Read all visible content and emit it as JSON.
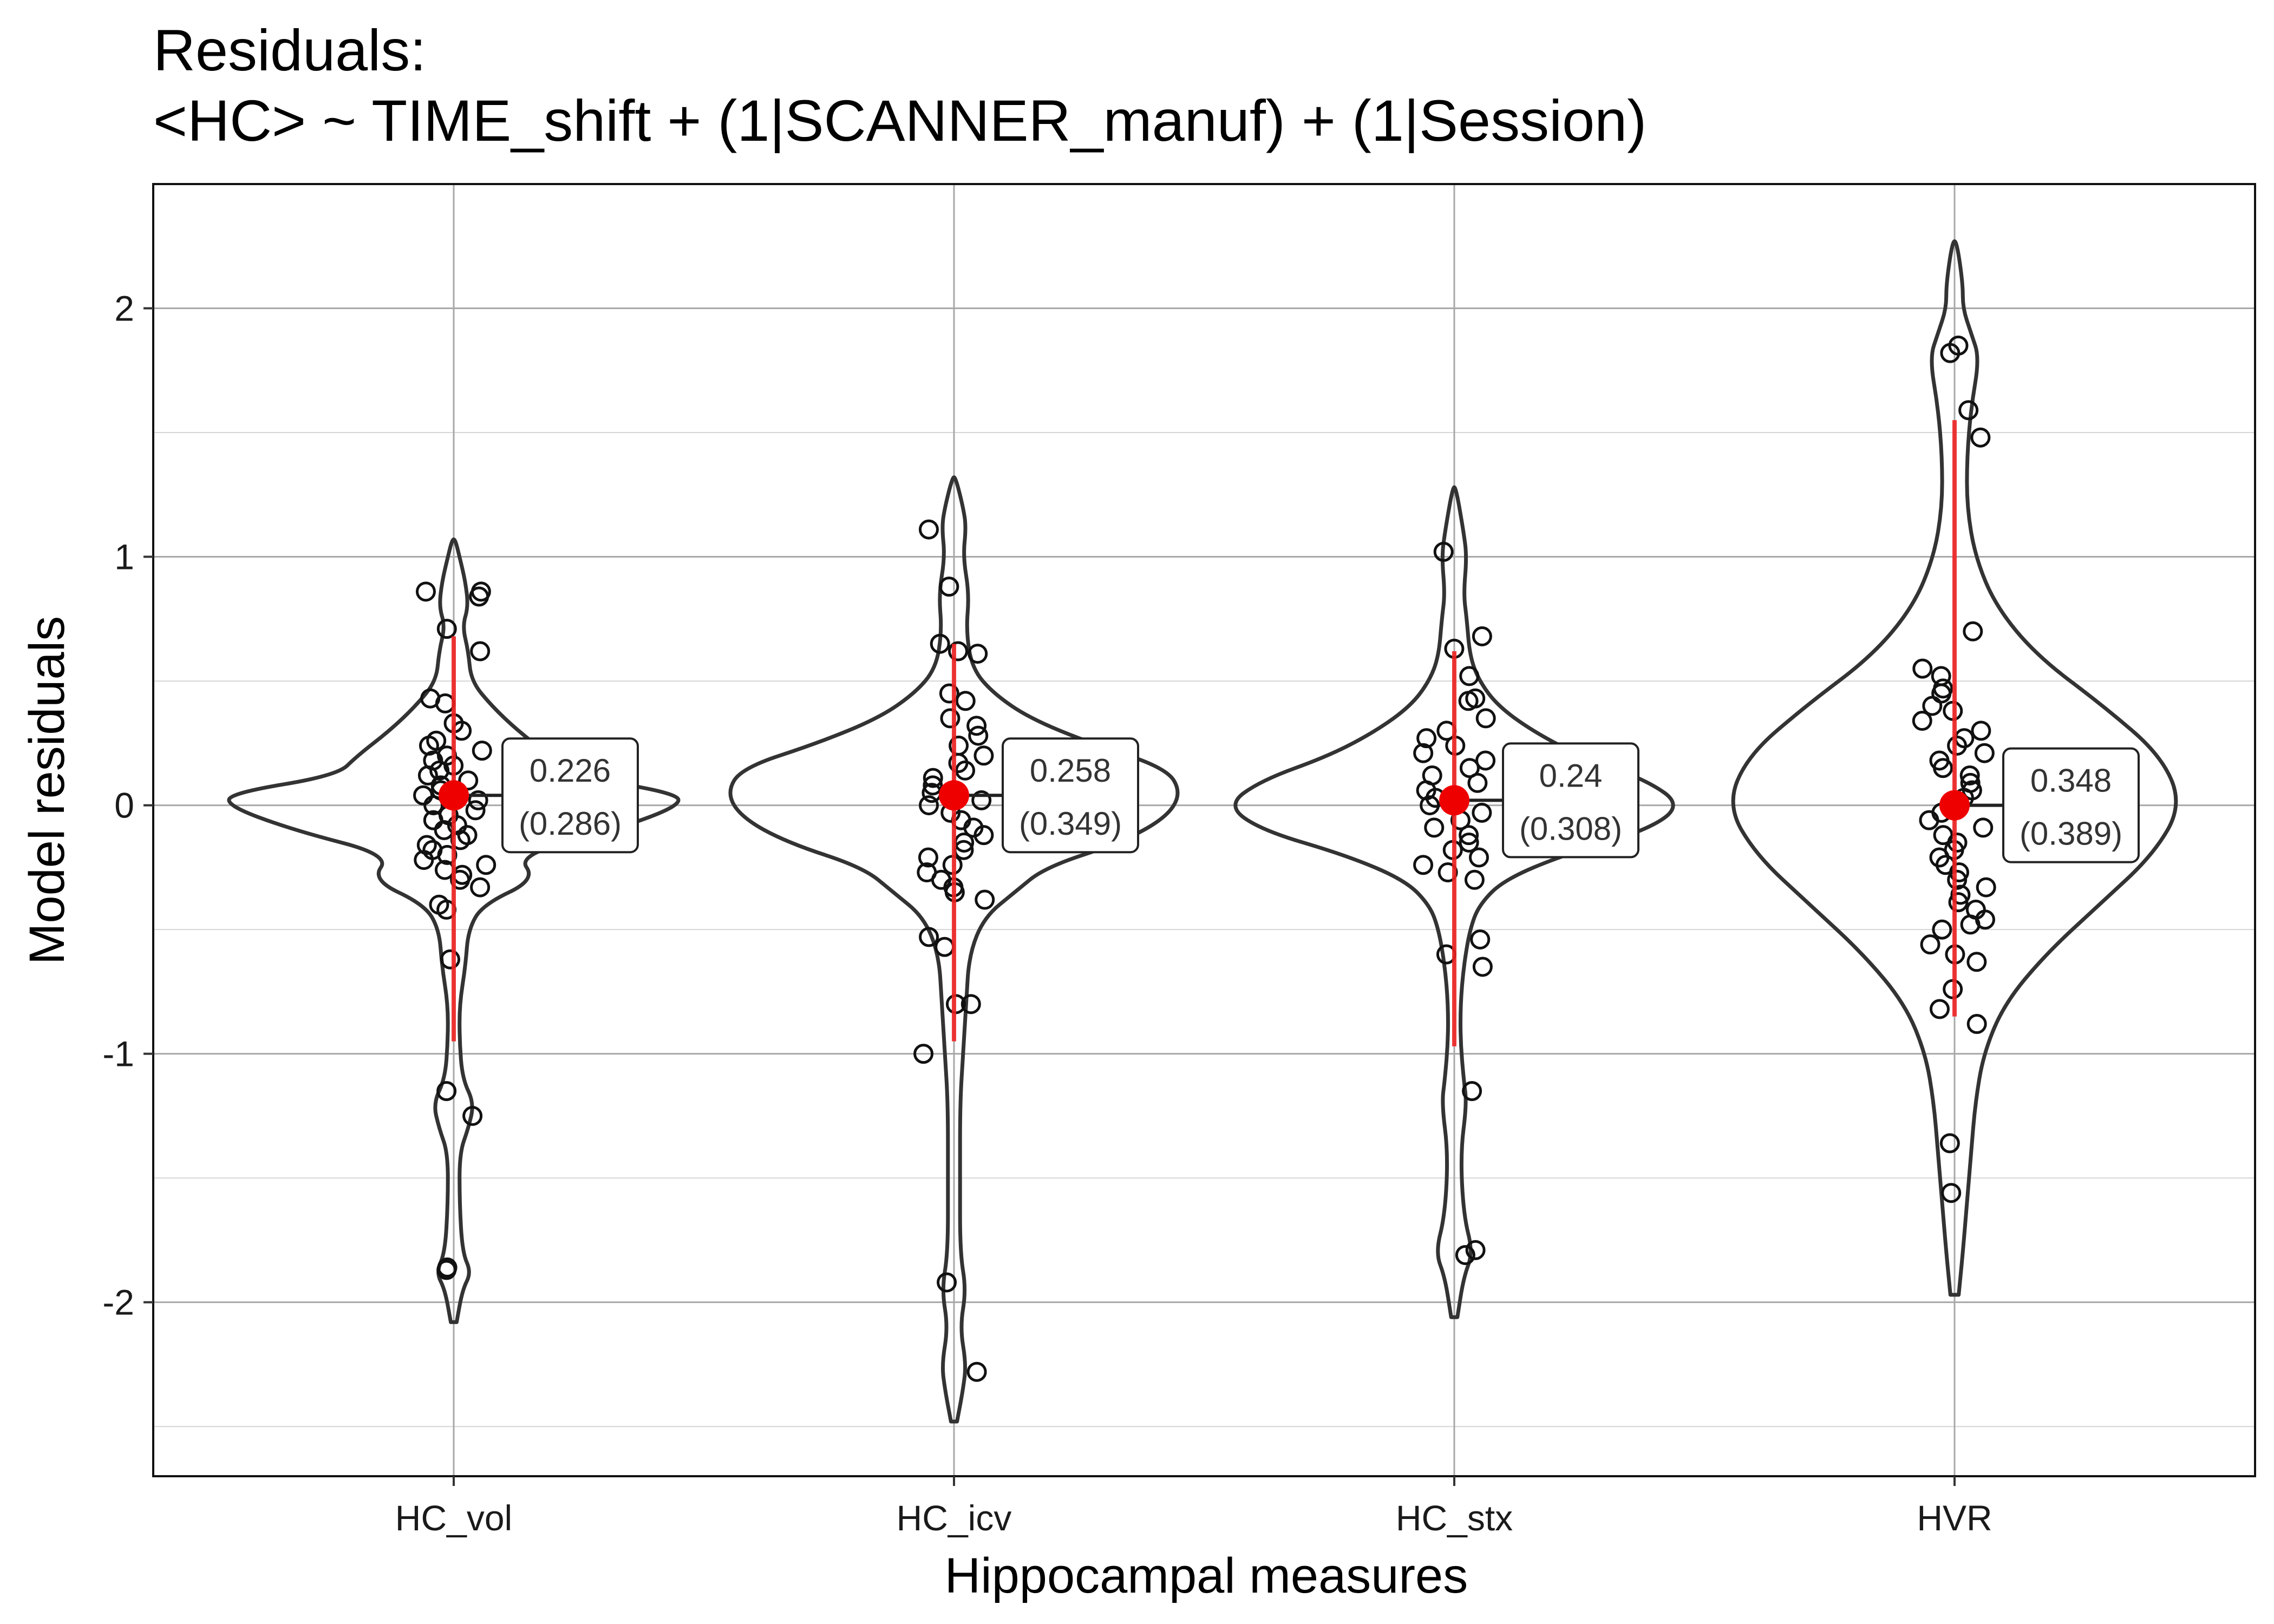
{
  "chart_data": {
    "type": "violin",
    "title": "Residuals:",
    "subtitle": "<HC> ~ TIME_shift + (1|SCANNER_manuf) + (1|Session)",
    "xlabel": "Hippocampal measures",
    "ylabel": "Model residuals",
    "ylim": [
      -2.7,
      2.5
    ],
    "yticks": [
      -2,
      -1,
      0,
      1,
      2
    ],
    "ytick_labels": [
      "-2",
      "-1",
      "0",
      "1",
      "2"
    ],
    "grid": true,
    "categories": [
      "HC_vol",
      "HC_icv",
      "HC_stx",
      "HVR"
    ],
    "groups": [
      {
        "name": "HC_vol",
        "mean": 0.04,
        "interval": [
          -0.95,
          0.68
        ],
        "label_sd": "0.226",
        "label_paren": "(0.286)",
        "y_range": [
          -2.08,
          1.07
        ],
        "density": [
          [
            -2.08,
            0.01
          ],
          [
            -1.95,
            0.03
          ],
          [
            -1.88,
            0.06
          ],
          [
            -1.8,
            0.03
          ],
          [
            -1.6,
            0.02
          ],
          [
            -1.4,
            0.02
          ],
          [
            -1.3,
            0.05
          ],
          [
            -1.2,
            0.07
          ],
          [
            -1.1,
            0.03
          ],
          [
            -0.95,
            0.02
          ],
          [
            -0.8,
            0.02
          ],
          [
            -0.65,
            0.04
          ],
          [
            -0.5,
            0.05
          ],
          [
            -0.4,
            0.1
          ],
          [
            -0.3,
            0.28
          ],
          [
            -0.2,
            0.22
          ],
          [
            -0.1,
            0.55
          ],
          [
            0.0,
            0.78
          ],
          [
            0.05,
            0.76
          ],
          [
            0.12,
            0.4
          ],
          [
            0.2,
            0.33
          ],
          [
            0.3,
            0.22
          ],
          [
            0.4,
            0.13
          ],
          [
            0.5,
            0.06
          ],
          [
            0.62,
            0.05
          ],
          [
            0.72,
            0.03
          ],
          [
            0.8,
            0.05
          ],
          [
            0.9,
            0.04
          ],
          [
            1.0,
            0.02
          ],
          [
            1.07,
            0.005
          ]
        ],
        "points": [
          0.84,
          0.86,
          0.86,
          0.71,
          0.62,
          0.43,
          0.41,
          0.33,
          0.3,
          0.26,
          0.24,
          0.22,
          0.2,
          0.18,
          0.16,
          0.14,
          0.12,
          0.1,
          0.08,
          0.06,
          0.04,
          0.02,
          0.0,
          -0.02,
          -0.04,
          -0.06,
          -0.08,
          -0.1,
          -0.12,
          -0.14,
          -0.16,
          -0.18,
          -0.2,
          -0.22,
          -0.24,
          -0.26,
          -0.28,
          -0.3,
          -0.33,
          -0.4,
          -0.42,
          -0.62,
          -1.15,
          -1.25,
          -1.86,
          -1.87
        ]
      },
      {
        "name": "HC_icv",
        "mean": 0.04,
        "interval": [
          -0.95,
          0.65
        ],
        "label_sd": "0.258",
        "label_paren": "(0.349)",
        "y_range": [
          -2.48,
          1.32
        ],
        "density": [
          [
            -2.48,
            0.01
          ],
          [
            -2.35,
            0.03
          ],
          [
            -2.25,
            0.04
          ],
          [
            -2.1,
            0.02
          ],
          [
            -1.95,
            0.04
          ],
          [
            -1.8,
            0.02
          ],
          [
            -1.5,
            0.02
          ],
          [
            -1.2,
            0.02
          ],
          [
            -1.0,
            0.03
          ],
          [
            -0.8,
            0.04
          ],
          [
            -0.6,
            0.05
          ],
          [
            -0.45,
            0.1
          ],
          [
            -0.35,
            0.2
          ],
          [
            -0.25,
            0.3
          ],
          [
            -0.15,
            0.55
          ],
          [
            -0.05,
            0.7
          ],
          [
            0.05,
            0.75
          ],
          [
            0.15,
            0.7
          ],
          [
            0.25,
            0.45
          ],
          [
            0.35,
            0.25
          ],
          [
            0.45,
            0.13
          ],
          [
            0.55,
            0.06
          ],
          [
            0.7,
            0.04
          ],
          [
            0.85,
            0.05
          ],
          [
            1.0,
            0.03
          ],
          [
            1.12,
            0.04
          ],
          [
            1.2,
            0.03
          ],
          [
            1.32,
            0.005
          ]
        ],
        "points": [
          1.11,
          0.88,
          0.65,
          0.62,
          0.61,
          0.45,
          0.42,
          0.35,
          0.32,
          0.28,
          0.24,
          0.2,
          0.17,
          0.14,
          0.11,
          0.08,
          0.05,
          0.02,
          0.0,
          -0.03,
          -0.06,
          -0.09,
          -0.12,
          -0.15,
          -0.18,
          -0.21,
          -0.24,
          -0.27,
          -0.3,
          -0.33,
          -0.35,
          -0.38,
          -0.53,
          -0.57,
          -0.8,
          -0.8,
          -1.0,
          -1.92,
          -2.28
        ]
      },
      {
        "name": "HC_stx",
        "mean": 0.02,
        "interval": [
          -0.97,
          0.62
        ],
        "label_sd": "0.24",
        "label_paren": "(0.308)",
        "y_range": [
          -2.06,
          1.28
        ],
        "density": [
          [
            -2.06,
            0.01
          ],
          [
            -1.9,
            0.03
          ],
          [
            -1.8,
            0.06
          ],
          [
            -1.65,
            0.03
          ],
          [
            -1.4,
            0.02
          ],
          [
            -1.2,
            0.04
          ],
          [
            -1.1,
            0.03
          ],
          [
            -0.95,
            0.02
          ],
          [
            -0.8,
            0.02
          ],
          [
            -0.65,
            0.03
          ],
          [
            -0.5,
            0.05
          ],
          [
            -0.4,
            0.08
          ],
          [
            -0.3,
            0.16
          ],
          [
            -0.2,
            0.35
          ],
          [
            -0.1,
            0.62
          ],
          [
            0.0,
            0.73
          ],
          [
            0.1,
            0.62
          ],
          [
            0.2,
            0.4
          ],
          [
            0.3,
            0.25
          ],
          [
            0.4,
            0.14
          ],
          [
            0.5,
            0.08
          ],
          [
            0.6,
            0.05
          ],
          [
            0.75,
            0.04
          ],
          [
            0.85,
            0.03
          ],
          [
            1.0,
            0.04
          ],
          [
            1.1,
            0.03
          ],
          [
            1.28,
            0.005
          ]
        ],
        "points": [
          1.02,
          0.68,
          0.63,
          0.52,
          0.43,
          0.42,
          0.35,
          0.3,
          0.27,
          0.24,
          0.21,
          0.18,
          0.15,
          0.12,
          0.09,
          0.06,
          0.03,
          0.0,
          -0.03,
          -0.06,
          -0.09,
          -0.12,
          -0.15,
          -0.18,
          -0.21,
          -0.24,
          -0.27,
          -0.3,
          -0.54,
          -0.6,
          -0.65,
          -1.15,
          -1.79,
          -1.81
        ]
      },
      {
        "name": "HVR",
        "mean": 0.0,
        "interval": [
          -0.85,
          1.55
        ],
        "label_sd": "0.348",
        "label_paren": "(0.389)",
        "y_range": [
          -1.97,
          2.27
        ],
        "density": [
          [
            -1.97,
            0.01
          ],
          [
            -1.8,
            0.02
          ],
          [
            -1.6,
            0.03
          ],
          [
            -1.4,
            0.04
          ],
          [
            -1.2,
            0.05
          ],
          [
            -1.0,
            0.07
          ],
          [
            -0.8,
            0.12
          ],
          [
            -0.6,
            0.22
          ],
          [
            -0.4,
            0.35
          ],
          [
            -0.2,
            0.48
          ],
          [
            0.0,
            0.55
          ],
          [
            0.2,
            0.5
          ],
          [
            0.4,
            0.36
          ],
          [
            0.6,
            0.2
          ],
          [
            0.8,
            0.1
          ],
          [
            1.0,
            0.05
          ],
          [
            1.2,
            0.03
          ],
          [
            1.4,
            0.03
          ],
          [
            1.6,
            0.04
          ],
          [
            1.8,
            0.06
          ],
          [
            1.9,
            0.04
          ],
          [
            2.0,
            0.02
          ],
          [
            2.1,
            0.02
          ],
          [
            2.27,
            0.005
          ]
        ],
        "points": [
          1.85,
          1.82,
          1.59,
          1.48,
          0.7,
          0.55,
          0.52,
          0.47,
          0.45,
          0.4,
          0.38,
          0.34,
          0.3,
          0.27,
          0.24,
          0.21,
          0.18,
          0.15,
          0.12,
          0.09,
          0.06,
          0.03,
          0.0,
          -0.03,
          -0.06,
          -0.09,
          -0.12,
          -0.15,
          -0.18,
          -0.21,
          -0.24,
          -0.27,
          -0.3,
          -0.33,
          -0.36,
          -0.39,
          -0.42,
          -0.46,
          -0.48,
          -0.5,
          -0.56,
          -0.6,
          -0.63,
          -0.74,
          -0.82,
          -0.88,
          -1.36,
          -1.56
        ]
      }
    ]
  }
}
